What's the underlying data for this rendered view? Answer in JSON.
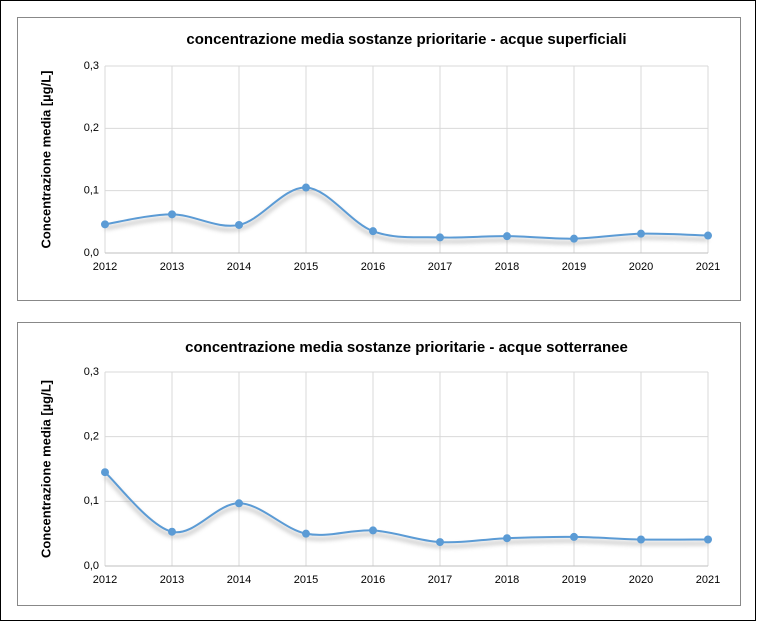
{
  "chart_data": [
    {
      "type": "line",
      "title": "concentrazione media sostanze prioritarie - acque superficiali",
      "y_label": "Concentrazione  media [µg/L]",
      "categories": [
        "2012",
        "2013",
        "2014",
        "2015",
        "2016",
        "2017",
        "2018",
        "2019",
        "2020",
        "2021"
      ],
      "series": [
        {
          "name": "concentrazione media",
          "color": "#5b9bd5",
          "values": [
            0.046,
            0.062,
            0.045,
            0.105,
            0.035,
            0.025,
            0.027,
            0.023,
            0.031,
            0.028
          ]
        }
      ],
      "ylim": [
        0,
        0.3
      ],
      "yticks": [
        {
          "value": 0,
          "label": "0,0"
        },
        {
          "value": 0.1,
          "label": "0,1"
        },
        {
          "value": 0.2,
          "label": "0,2"
        },
        {
          "value": 0.3,
          "label": "0,3"
        }
      ],
      "grid": true,
      "smooth": true
    },
    {
      "type": "line",
      "title": "concentrazione media sostanze prioritarie - acque sotterranee",
      "y_label": "Concentrazione  media  [µg/L]",
      "categories": [
        "2012",
        "2013",
        "2014",
        "2015",
        "2016",
        "2017",
        "2018",
        "2019",
        "2020",
        "2021"
      ],
      "series": [
        {
          "name": "concentrazione media",
          "color": "#5b9bd5",
          "values": [
            0.145,
            0.053,
            0.097,
            0.05,
            0.055,
            0.037,
            0.043,
            0.045,
            0.041,
            0.041
          ]
        }
      ],
      "ylim": [
        0,
        0.3
      ],
      "yticks": [
        {
          "value": 0,
          "label": "0,0"
        },
        {
          "value": 0.1,
          "label": "0,1"
        },
        {
          "value": 0.2,
          "label": "0,2"
        },
        {
          "value": 0.3,
          "label": "0,3"
        }
      ],
      "grid": true,
      "smooth": true
    }
  ]
}
